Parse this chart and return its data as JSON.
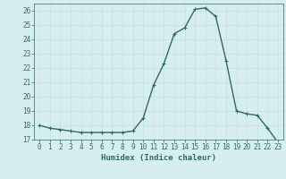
{
  "x": [
    0,
    1,
    2,
    3,
    4,
    5,
    6,
    7,
    8,
    9,
    10,
    11,
    12,
    13,
    14,
    15,
    16,
    17,
    18,
    19,
    20,
    21,
    22,
    23
  ],
  "y": [
    18.0,
    17.8,
    17.7,
    17.6,
    17.5,
    17.5,
    17.5,
    17.5,
    17.5,
    17.6,
    18.5,
    20.8,
    22.3,
    24.4,
    24.8,
    26.1,
    26.2,
    25.6,
    22.5,
    19.0,
    18.8,
    18.7,
    17.8,
    16.8
  ],
  "line_color": "#2e6b5e",
  "marker": "+",
  "marker_size": 3,
  "bg_color": "#d6eef0",
  "grid_color": "#c8dfe2",
  "xlabel": "Humidex (Indice chaleur)",
  "xlim": [
    -0.5,
    23.5
  ],
  "ylim": [
    17,
    26.5
  ],
  "yticks": [
    17,
    18,
    19,
    20,
    21,
    22,
    23,
    24,
    25,
    26
  ],
  "xticks": [
    0,
    1,
    2,
    3,
    4,
    5,
    6,
    7,
    8,
    9,
    10,
    11,
    12,
    13,
    14,
    15,
    16,
    17,
    18,
    19,
    20,
    21,
    22,
    23
  ],
  "label_fontsize": 6.5,
  "tick_fontsize": 5.5,
  "line_width": 1.0
}
